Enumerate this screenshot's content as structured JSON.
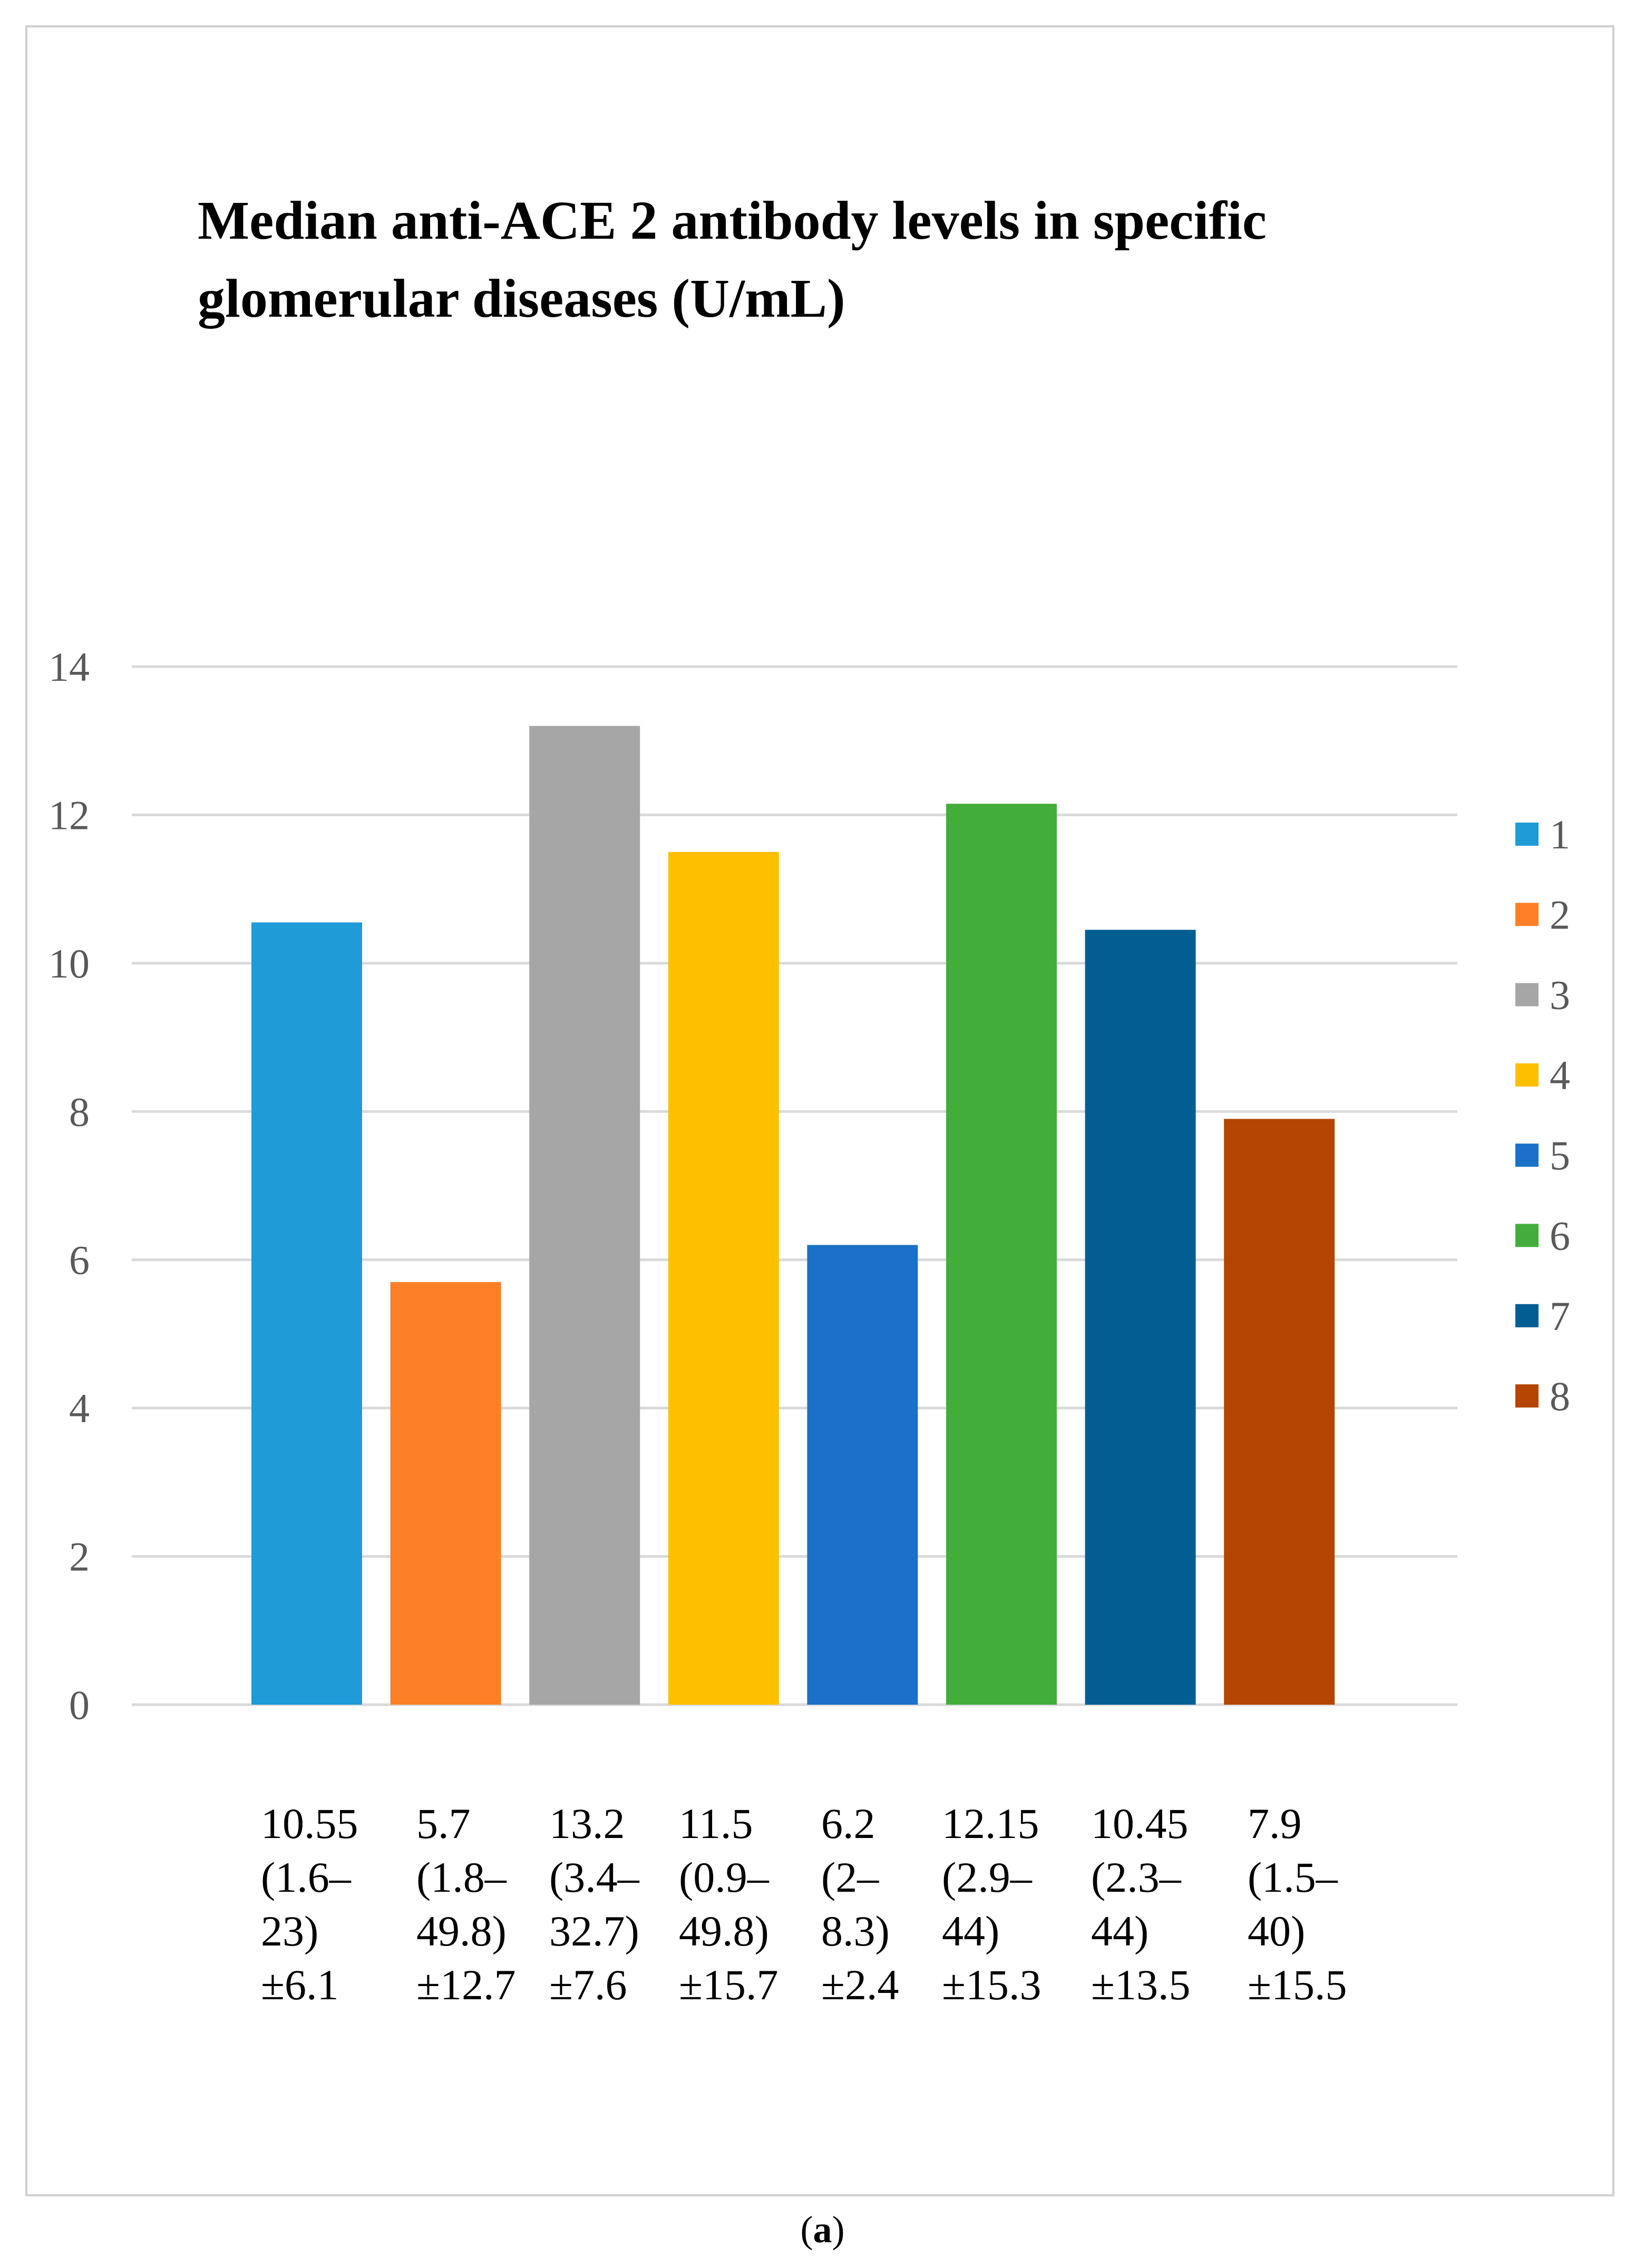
{
  "chart_data": {
    "type": "bar",
    "title": "Median anti-ACE 2 antibody levels in specific glomerular diseases (U/mL)",
    "xlabel": "",
    "ylabel": "",
    "ylim": [
      0,
      14
    ],
    "yticks": [
      0,
      2,
      4,
      6,
      8,
      10,
      12,
      14
    ],
    "grid": true,
    "legend_position": "right",
    "categories": [
      "1",
      "2",
      "3",
      "4",
      "5",
      "6",
      "7",
      "8"
    ],
    "values": [
      10.55,
      5.7,
      13.2,
      11.5,
      6.2,
      12.15,
      10.45,
      7.9
    ],
    "colors": [
      "#1f9bd7",
      "#fd7f27",
      "#a6a6a6",
      "#fdbf00",
      "#1a71c7",
      "#43ad3c",
      "#025d92",
      "#b44502"
    ],
    "category_labels": [
      "10.55\n(1.6–\n23)\n±6.1",
      "5.7\n(1.8–\n49.8)\n±12.7",
      "13.2\n (3.4–\n32.7)\n±7.6",
      "11.5\n(0.9–\n49.8)\n±15.7",
      "6.2\n(2–\n8.3)\n±2.4",
      "12.15\n(2.9–\n44)\n±15.3",
      "10.45\n(2.3–\n44)\n±13.5",
      "7.9\n(1.5–\n40)\n±15.5"
    ]
  },
  "caption": {
    "open": "(",
    "letter": "a",
    "close": ")"
  }
}
